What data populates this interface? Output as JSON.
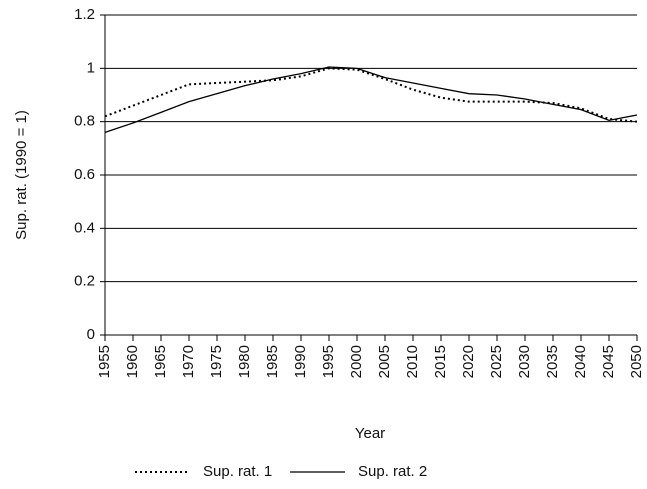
{
  "chart_data": {
    "type": "line",
    "x_label": "Year",
    "y_label": "Sup. rat. (1990 = 1)",
    "x": [
      1955,
      1960,
      1965,
      1970,
      1975,
      1980,
      1985,
      1990,
      1995,
      2000,
      2005,
      2010,
      2015,
      2020,
      2025,
      2030,
      2035,
      2040,
      2045,
      2050
    ],
    "series": [
      {
        "name": "Sup. rat. 1",
        "color": "#000000",
        "style": "dotted",
        "values": [
          0.82,
          0.86,
          0.9,
          0.94,
          0.945,
          0.95,
          0.955,
          0.97,
          1.0,
          0.995,
          0.96,
          0.92,
          0.89,
          0.875,
          0.875,
          0.875,
          0.87,
          0.85,
          0.81,
          0.8
        ]
      },
      {
        "name": "Sup. rat. 2",
        "color": "#000000",
        "style": "solid",
        "values": [
          0.76,
          0.795,
          0.835,
          0.875,
          0.905,
          0.935,
          0.96,
          0.98,
          1.005,
          1.0,
          0.965,
          0.945,
          0.925,
          0.905,
          0.9,
          0.885,
          0.865,
          0.845,
          0.805,
          0.825
        ]
      }
    ],
    "xlim": [
      1955,
      2050
    ],
    "xticks": [
      1955,
      1960,
      1965,
      1970,
      1975,
      1980,
      1985,
      1990,
      1995,
      2000,
      2005,
      2010,
      2015,
      2020,
      2025,
      2030,
      2035,
      2040,
      2045,
      2050
    ],
    "ylim": [
      0,
      1.2
    ],
    "yticks": [
      0,
      0.2,
      0.4,
      0.6,
      0.8,
      1,
      1.2
    ],
    "grid": true,
    "legend": "bottom"
  }
}
